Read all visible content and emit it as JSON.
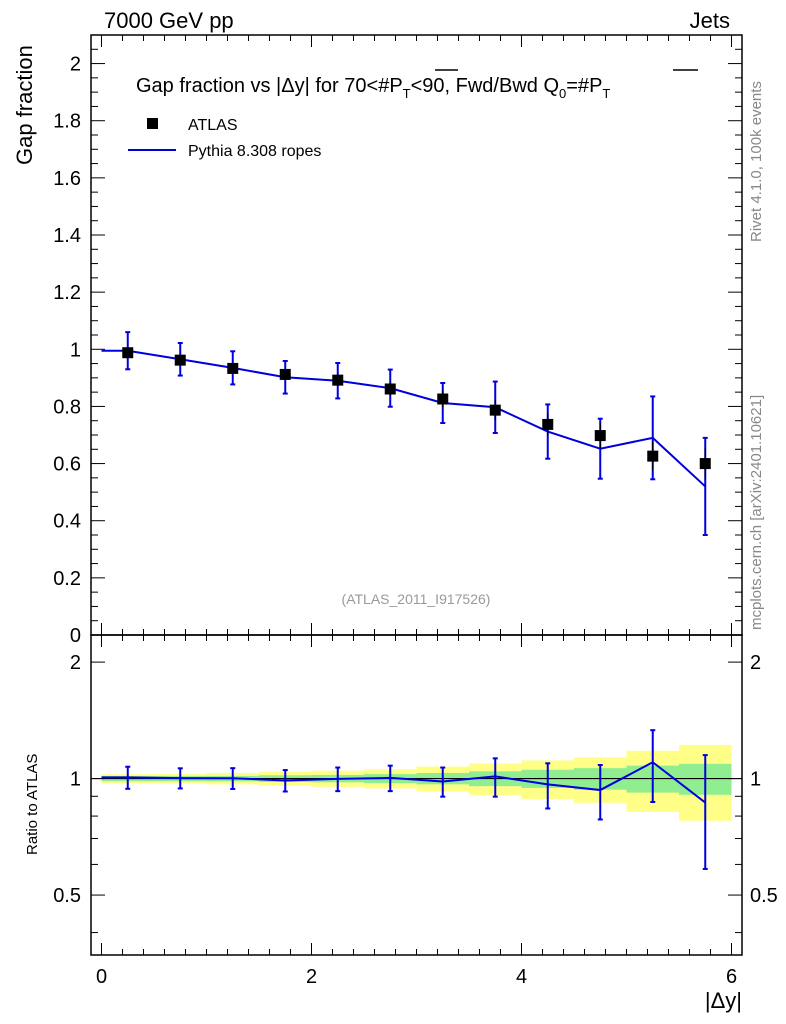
{
  "header": {
    "left": "7000 GeV pp",
    "right": "Jets",
    "side_rivet": "Rivet 4.1.0,  100k events",
    "side_mcplots": "mcplots.cern.ch [arXiv:2401.10621]",
    "watermark": "(ATLAS_2011_I917526)"
  },
  "colors": {
    "data": "#000000",
    "mc": "#0000dd",
    "band_inner": "#90ee90",
    "band_outer": "#ffff88"
  },
  "chart_data": {
    "type": "scatter",
    "title": "Gap fraction vs |Δy| for 70<#P̅T<90, Fwd/Bwd Q0=#P̅T",
    "title_parts": {
      "a": "Gap fraction vs |Δy| for 70<#",
      "p1": "P",
      "sub1": "T",
      "b": "<90, Fwd/Bwd Q",
      "sub0": "0",
      "c": "=#",
      "p2": "P",
      "sub2": "T"
    },
    "xlabel": "|Δy|",
    "ylabel": "Gap fraction",
    "ratio_ylabel": "Ratio to ATLAS",
    "xlim": [
      -0.1,
      6.1
    ],
    "ylim": [
      0,
      2.1
    ],
    "ratio_ylim": [
      0.35,
      2.35
    ],
    "x_ticks": [
      0,
      2,
      4,
      6
    ],
    "y_ticks": [
      0,
      0.2,
      0.4,
      0.6,
      0.8,
      1,
      1.2,
      1.4,
      1.6,
      1.8,
      2
    ],
    "ratio_ticks": [
      0.5,
      1,
      2
    ],
    "legend": [
      "ATLAS",
      "Pythia 8.308 ropes"
    ],
    "x": [
      0.25,
      0.75,
      1.25,
      1.75,
      2.25,
      2.75,
      3.25,
      3.75,
      4.25,
      4.75,
      5.25,
      5.75
    ],
    "series": [
      {
        "name": "ATLAS",
        "values": [
          0.988,
          0.962,
          0.933,
          0.912,
          0.892,
          0.861,
          0.826,
          0.787,
          0.737,
          0.698,
          0.626,
          0.6
        ],
        "errors": [
          0.015,
          0.015,
          0.015,
          0.018,
          0.02,
          0.023,
          0.028,
          0.035,
          0.04,
          0.045,
          0.05,
          0.055
        ]
      },
      {
        "name": "Pythia 8.308 ropes",
        "values": [
          0.995,
          0.965,
          0.935,
          0.902,
          0.89,
          0.864,
          0.812,
          0.797,
          0.712,
          0.652,
          0.69,
          0.52
        ],
        "errors": [
          0.065,
          0.057,
          0.058,
          0.057,
          0.062,
          0.065,
          0.07,
          0.09,
          0.095,
          0.105,
          0.145,
          0.17
        ]
      }
    ],
    "ratio": {
      "values": [
        1.007,
        1.003,
        1.002,
        0.989,
        0.998,
        1.004,
        0.983,
        1.013,
        0.966,
        0.934,
        1.102,
        0.867
      ],
      "errors": [
        0.066,
        0.06,
        0.062,
        0.063,
        0.07,
        0.076,
        0.085,
        0.115,
        0.129,
        0.15,
        0.232,
        0.283
      ],
      "band_inner": [
        0.015,
        0.015,
        0.016,
        0.02,
        0.022,
        0.027,
        0.034,
        0.044,
        0.054,
        0.064,
        0.08,
        0.092
      ],
      "band_outer": [
        0.012,
        0.014,
        0.018,
        0.022,
        0.026,
        0.03,
        0.04,
        0.05,
        0.06,
        0.07,
        0.1,
        0.13
      ]
    }
  }
}
